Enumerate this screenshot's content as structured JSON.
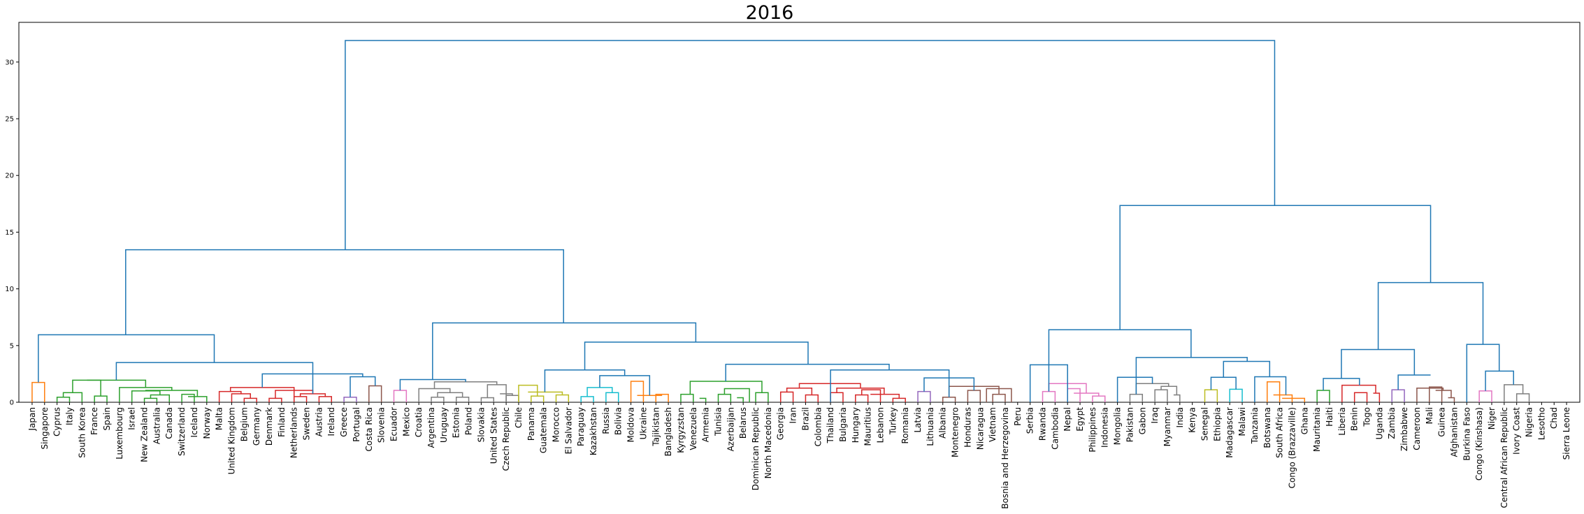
{
  "chart_data": {
    "type": "dendrogram",
    "title": "2016",
    "xlabel": "",
    "ylabel": "",
    "ylim": [
      0,
      33.5
    ],
    "yticks": [
      0,
      5,
      10,
      15,
      20,
      25,
      30
    ],
    "grid": false,
    "leaves": [
      "Japan",
      "Singapore",
      "Cyprus",
      "Italy",
      "South Korea",
      "France",
      "Spain",
      "Luxembourg",
      "Israel",
      "New Zealand",
      "Australia",
      "Canada",
      "Switzerland",
      "Iceland",
      "Norway",
      "Malta",
      "United Kingdom",
      "Belgium",
      "Germany",
      "Denmark",
      "Finland",
      "Netherlands",
      "Sweden",
      "Austria",
      "Ireland",
      "Greece",
      "Portugal",
      "Costa Rica",
      "Slovenia",
      "Ecuador",
      "Mexico",
      "Croatia",
      "Argentina",
      "Uruguay",
      "Estonia",
      "Poland",
      "Slovakia",
      "United States",
      "Czech Republic",
      "Chile",
      "Panama",
      "Guatemala",
      "Morocco",
      "El Salvador",
      "Paraguay",
      "Kazakhstan",
      "Russia",
      "Bolivia",
      "Moldova",
      "Ukraine",
      "Tajikistan",
      "Bangladesh",
      "Kyrgyzstan",
      "Venezuela",
      "Armenia",
      "Tunisia",
      "Azerbaijan",
      "Belarus",
      "Dominican Republic",
      "North Macedonia",
      "Georgia",
      "Iran",
      "Brazil",
      "Colombia",
      "Thailand",
      "Bulgaria",
      "Hungary",
      "Mauritius",
      "Lebanon",
      "Turkey",
      "Romania",
      "Latvia",
      "Lithuania",
      "Albania",
      "Montenegro",
      "Honduras",
      "Nicaragua",
      "Vietnam",
      "Bosnia and Herzegovina",
      "Peru",
      "Serbia",
      "Rwanda",
      "Cambodia",
      "Nepal",
      "Egypt",
      "Philippines",
      "Indonesia",
      "Mongolia",
      "Pakistan",
      "Gabon",
      "Iraq",
      "Myanmar",
      "India",
      "Kenya",
      "Senegal",
      "Ethiopia",
      "Madagascar",
      "Malawi",
      "Tanzania",
      "Botswana",
      "South Africa",
      "Congo (Brazzaville)",
      "Ghana",
      "Mauritania",
      "Haiti",
      "Liberia",
      "Benin",
      "Togo",
      "Uganda",
      "Zambia",
      "Zimbabwe",
      "Cameroon",
      "Mali",
      "Guinea",
      "Afghanistan",
      "Burkina Faso",
      "Congo (Kinshasa)",
      "Niger",
      "Central African Republic",
      "Ivory Coast",
      "Nigeria",
      "Lesotho",
      "Chad",
      "Sierra Leone"
    ],
    "links": [
      {
        "x": [
          0,
          1
        ],
        "h": 1.75,
        "color": "#ff7f0e"
      },
      {
        "x": [
          2,
          3
        ],
        "h": 0.45,
        "color": "#2ca02c"
      },
      {
        "x": [
          2.5,
          4
        ],
        "h": 0.85,
        "color": "#2ca02c"
      },
      {
        "x": [
          5,
          6
        ],
        "h": 0.55,
        "color": "#2ca02c"
      },
      {
        "x": [
          3.25,
          5.5
        ],
        "h": 1.95,
        "color": "#2ca02c"
      },
      {
        "x": [
          9,
          10
        ],
        "h": 0.35,
        "color": "#2ca02c"
      },
      {
        "x": [
          9.5,
          11
        ],
        "h": 0.65,
        "color": "#2ca02c"
      },
      {
        "x": [
          8,
          10.25
        ],
        "h": 1.0,
        "color": "#2ca02c"
      },
      {
        "x": [
          12,
          13
        ],
        "h": 0.7,
        "color": "#2ca02c"
      },
      {
        "x": [
          12.5,
          14
        ],
        "h": 0.5,
        "color": "#2ca02c"
      },
      {
        "x": [
          9.12,
          13.25
        ],
        "h": 1.05,
        "color": "#2ca02c"
      },
      {
        "x": [
          7,
          11.2
        ],
        "h": 1.3,
        "color": "#2ca02c"
      },
      {
        "x": [
          4.4,
          9.1
        ],
        "h": 1.95,
        "color": "#2ca02c"
      },
      {
        "x": [
          17,
          18
        ],
        "h": 0.35,
        "color": "#d62728"
      },
      {
        "x": [
          16,
          17.5
        ],
        "h": 0.75,
        "color": "#d62728"
      },
      {
        "x": [
          15,
          16.75
        ],
        "h": 0.95,
        "color": "#d62728"
      },
      {
        "x": [
          19,
          20
        ],
        "h": 0.35,
        "color": "#d62728"
      },
      {
        "x": [
          21,
          22
        ],
        "h": 0.5,
        "color": "#d62728"
      },
      {
        "x": [
          23,
          24
        ],
        "h": 0.5,
        "color": "#d62728"
      },
      {
        "x": [
          21.5,
          23.5
        ],
        "h": 0.75,
        "color": "#d62728"
      },
      {
        "x": [
          19.5,
          22.5
        ],
        "h": 1.05,
        "color": "#d62728"
      },
      {
        "x": [
          15.9,
          21.0
        ],
        "h": 1.3,
        "color": "#d62728"
      },
      {
        "x": [
          25,
          26
        ],
        "h": 0.45,
        "color": "#9467bd"
      },
      {
        "x": [
          27,
          28
        ],
        "h": 1.45,
        "color": "#8c564b"
      },
      {
        "x": [
          25.5,
          27.5
        ],
        "h": 2.25,
        "color": "#1f77b4"
      },
      {
        "x": [
          18.45,
          26.5
        ],
        "h": 2.5,
        "color": "#1f77b4"
      },
      {
        "x": [
          6.75,
          22.5
        ],
        "h": 3.5,
        "color": "#1f77b4"
      },
      {
        "x": [
          0.5,
          14.6
        ],
        "h": 5.95,
        "color": "#1f77b4"
      },
      {
        "x": [
          29,
          30
        ],
        "h": 1.05,
        "color": "#e377c2"
      },
      {
        "x": [
          32,
          33
        ],
        "h": 0.45,
        "color": "#7f7f7f"
      },
      {
        "x": [
          34,
          35
        ],
        "h": 0.45,
        "color": "#7f7f7f"
      },
      {
        "x": [
          32.5,
          34.5
        ],
        "h": 0.85,
        "color": "#7f7f7f"
      },
      {
        "x": [
          31,
          33.5
        ],
        "h": 1.2,
        "color": "#7f7f7f"
      },
      {
        "x": [
          36,
          37
        ],
        "h": 0.4,
        "color": "#7f7f7f"
      },
      {
        "x": [
          38,
          39
        ],
        "h": 0.6,
        "color": "#7f7f7f"
      },
      {
        "x": [
          37.5,
          38.5
        ],
        "h": 0.75,
        "color": "#7f7f7f"
      },
      {
        "x": [
          36.5,
          38
        ],
        "h": 1.55,
        "color": "#7f7f7f"
      },
      {
        "x": [
          32.25,
          37.25
        ],
        "h": 1.8,
        "color": "#7f7f7f"
      },
      {
        "x": [
          29.5,
          34.75
        ],
        "h": 2.0,
        "color": "#1f77b4"
      },
      {
        "x": [
          40,
          41
        ],
        "h": 0.55,
        "color": "#bcbd22"
      },
      {
        "x": [
          42,
          43
        ],
        "h": 0.65,
        "color": "#bcbd22"
      },
      {
        "x": [
          39,
          40.5
        ],
        "h": 1.5,
        "color": "#bcbd22"
      },
      {
        "x": [
          39.75,
          42.5
        ],
        "h": 0.9,
        "color": "#bcbd22"
      },
      {
        "x": [
          44,
          45
        ],
        "h": 0.5,
        "color": "#17becf"
      },
      {
        "x": [
          46,
          47
        ],
        "h": 0.85,
        "color": "#17becf"
      },
      {
        "x": [
          44.5,
          46.5
        ],
        "h": 1.3,
        "color": "#17becf"
      },
      {
        "x": [
          48,
          49
        ],
        "h": 1.85,
        "color": "#ff7f0e"
      },
      {
        "x": [
          50,
          51
        ],
        "h": 0.7,
        "color": "#ff7f0e"
      },
      {
        "x": [
          48.5,
          50.5
        ],
        "h": 0.6,
        "color": "#ff7f0e"
      },
      {
        "x": [
          45.5,
          49.5
        ],
        "h": 2.35,
        "color": "#1f77b4"
      },
      {
        "x": [
          41.1,
          47.5
        ],
        "h": 2.85,
        "color": "#1f77b4"
      },
      {
        "x": [
          52,
          53
        ],
        "h": 0.7,
        "color": "#2ca02c"
      },
      {
        "x": [
          53.5,
          54
        ],
        "h": 0.35,
        "color": "#2ca02c"
      },
      {
        "x": [
          55,
          56
        ],
        "h": 0.7,
        "color": "#2ca02c"
      },
      {
        "x": [
          56.5,
          57
        ],
        "h": 0.4,
        "color": "#2ca02c"
      },
      {
        "x": [
          55.5,
          57.5
        ],
        "h": 1.2,
        "color": "#2ca02c"
      },
      {
        "x": [
          58,
          59
        ],
        "h": 0.85,
        "color": "#2ca02c"
      },
      {
        "x": [
          52.75,
          58.5
        ],
        "h": 1.85,
        "color": "#2ca02c"
      },
      {
        "x": [
          60,
          61
        ],
        "h": 0.9,
        "color": "#d62728"
      },
      {
        "x": [
          62,
          63
        ],
        "h": 0.65,
        "color": "#d62728"
      },
      {
        "x": [
          60.5,
          62.5
        ],
        "h": 1.25,
        "color": "#d62728"
      },
      {
        "x": [
          64,
          65
        ],
        "h": 0.85,
        "color": "#d62728"
      },
      {
        "x": [
          66,
          67
        ],
        "h": 0.65,
        "color": "#d62728"
      },
      {
        "x": [
          66.5,
          68
        ],
        "h": 1.1,
        "color": "#d62728"
      },
      {
        "x": [
          69,
          70
        ],
        "h": 0.35,
        "color": "#d62728"
      },
      {
        "x": [
          67.2,
          69.5
        ],
        "h": 0.7,
        "color": "#d62728"
      },
      {
        "x": [
          64.5,
          68.3
        ],
        "h": 1.25,
        "color": "#d62728"
      },
      {
        "x": [
          61.5,
          66.4
        ],
        "h": 1.65,
        "color": "#d62728"
      },
      {
        "x": [
          71,
          72
        ],
        "h": 0.95,
        "color": "#9467bd"
      },
      {
        "x": [
          73,
          74
        ],
        "h": 0.45,
        "color": "#8c564b"
      },
      {
        "x": [
          75,
          76
        ],
        "h": 1.05,
        "color": "#8c564b"
      },
      {
        "x": [
          77,
          78
        ],
        "h": 0.7,
        "color": "#8c564b"
      },
      {
        "x": [
          76.5,
          78.5
        ],
        "h": 1.2,
        "color": "#8c564b"
      },
      {
        "x": [
          73.5,
          77.5
        ],
        "h": 1.4,
        "color": "#8c564b"
      },
      {
        "x": [
          71.5,
          75.5
        ],
        "h": 2.15,
        "color": "#1f77b4"
      },
      {
        "x": [
          64,
          73.5
        ],
        "h": 2.85,
        "color": "#1f77b4"
      },
      {
        "x": [
          55.6,
          68.7
        ],
        "h": 3.35,
        "color": "#1f77b4"
      },
      {
        "x": [
          44.3,
          62.2
        ],
        "h": 5.3,
        "color": "#1f77b4"
      },
      {
        "x": [
          32.1,
          53.2
        ],
        "h": 7.0,
        "color": "#1f77b4"
      },
      {
        "x": [
          7.5,
          42.6
        ],
        "h": 13.45,
        "color": "#1f77b4"
      },
      {
        "x": [
          81,
          82
        ],
        "h": 0.95,
        "color": "#e377c2"
      },
      {
        "x": [
          83,
          84
        ],
        "h": 1.2,
        "color": "#e377c2"
      },
      {
        "x": [
          85,
          86
        ],
        "h": 0.55,
        "color": "#e377c2"
      },
      {
        "x": [
          83.5,
          85.5
        ],
        "h": 0.8,
        "color": "#e377c2"
      },
      {
        "x": [
          81.5,
          84.5
        ],
        "h": 1.65,
        "color": "#e377c2"
      },
      {
        "x": [
          80,
          83
        ],
        "h": 3.3,
        "color": "#1f77b4"
      },
      {
        "x": [
          88,
          89
        ],
        "h": 0.7,
        "color": "#7f7f7f"
      },
      {
        "x": [
          90,
          91
        ],
        "h": 1.1,
        "color": "#7f7f7f"
      },
      {
        "x": [
          91.5,
          92
        ],
        "h": 0.65,
        "color": "#7f7f7f"
      },
      {
        "x": [
          90.5,
          91.75
        ],
        "h": 1.4,
        "color": "#7f7f7f"
      },
      {
        "x": [
          88.5,
          91.1
        ],
        "h": 1.65,
        "color": "#7f7f7f"
      },
      {
        "x": [
          87,
          89.8
        ],
        "h": 2.2,
        "color": "#1f77b4"
      },
      {
        "x": [
          94,
          95
        ],
        "h": 1.1,
        "color": "#bcbd22"
      },
      {
        "x": [
          96,
          97
        ],
        "h": 1.15,
        "color": "#17becf"
      },
      {
        "x": [
          94.5,
          96.5
        ],
        "h": 2.2,
        "color": "#1f77b4"
      },
      {
        "x": [
          99,
          100
        ],
        "h": 1.8,
        "color": "#ff7f0e"
      },
      {
        "x": [
          99.5,
          101
        ],
        "h": 0.65,
        "color": "#ff7f0e"
      },
      {
        "x": [
          100.2,
          102
        ],
        "h": 0.35,
        "color": "#ff7f0e"
      },
      {
        "x": [
          98,
          100.5
        ],
        "h": 2.25,
        "color": "#1f77b4"
      },
      {
        "x": [
          95.5,
          99.2
        ],
        "h": 3.6,
        "color": "#1f77b4"
      },
      {
        "x": [
          88.5,
          97.4
        ],
        "h": 3.95,
        "color": "#1f77b4"
      },
      {
        "x": [
          81.5,
          92.9
        ],
        "h": 6.4,
        "color": "#1f77b4"
      },
      {
        "x": [
          103,
          104
        ],
        "h": 1.05,
        "color": "#2ca02c"
      },
      {
        "x": [
          106,
          107
        ],
        "h": 0.85,
        "color": "#d62728"
      },
      {
        "x": [
          107.5,
          108
        ],
        "h": 0.8,
        "color": "#d62728"
      },
      {
        "x": [
          105,
          107.7
        ],
        "h": 1.5,
        "color": "#d62728"
      },
      {
        "x": [
          103.5,
          106.4
        ],
        "h": 2.1,
        "color": "#1f77b4"
      },
      {
        "x": [
          109,
          110
        ],
        "h": 1.1,
        "color": "#9467bd"
      },
      {
        "x": [
          112,
          113
        ],
        "h": 1.35,
        "color": "#8c564b"
      },
      {
        "x": [
          113.5,
          114
        ],
        "h": 0.4,
        "color": "#8c564b"
      },
      {
        "x": [
          112.5,
          113.75
        ],
        "h": 1.05,
        "color": "#8c564b"
      },
      {
        "x": [
          111,
          113.1
        ],
        "h": 1.25,
        "color": "#8c564b"
      },
      {
        "x": [
          109.5,
          112.1
        ],
        "h": 2.4,
        "color": "#1f77b4"
      },
      {
        "x": [
          104.95,
          110.8
        ],
        "h": 4.65,
        "color": "#1f77b4"
      },
      {
        "x": [
          116,
          117
        ],
        "h": 1.0,
        "color": "#e377c2"
      },
      {
        "x": [
          119,
          120
        ],
        "h": 0.75,
        "color": "#7f7f7f"
      },
      {
        "x": [
          118,
          119.5
        ],
        "h": 1.55,
        "color": "#7f7f7f"
      },
      {
        "x": [
          116.5,
          118.75
        ],
        "h": 2.75,
        "color": "#1f77b4"
      },
      {
        "x": [
          115,
          117.6
        ],
        "h": 5.1,
        "color": "#1f77b4"
      },
      {
        "x": [
          107.9,
          116.3
        ],
        "h": 10.55,
        "color": "#1f77b4"
      },
      {
        "x": [
          87.2,
          112.1
        ],
        "h": 17.35,
        "color": "#1f77b4"
      },
      {
        "x": [
          25.1,
          99.6
        ],
        "h": 31.9,
        "color": "#1f77b4"
      }
    ]
  }
}
